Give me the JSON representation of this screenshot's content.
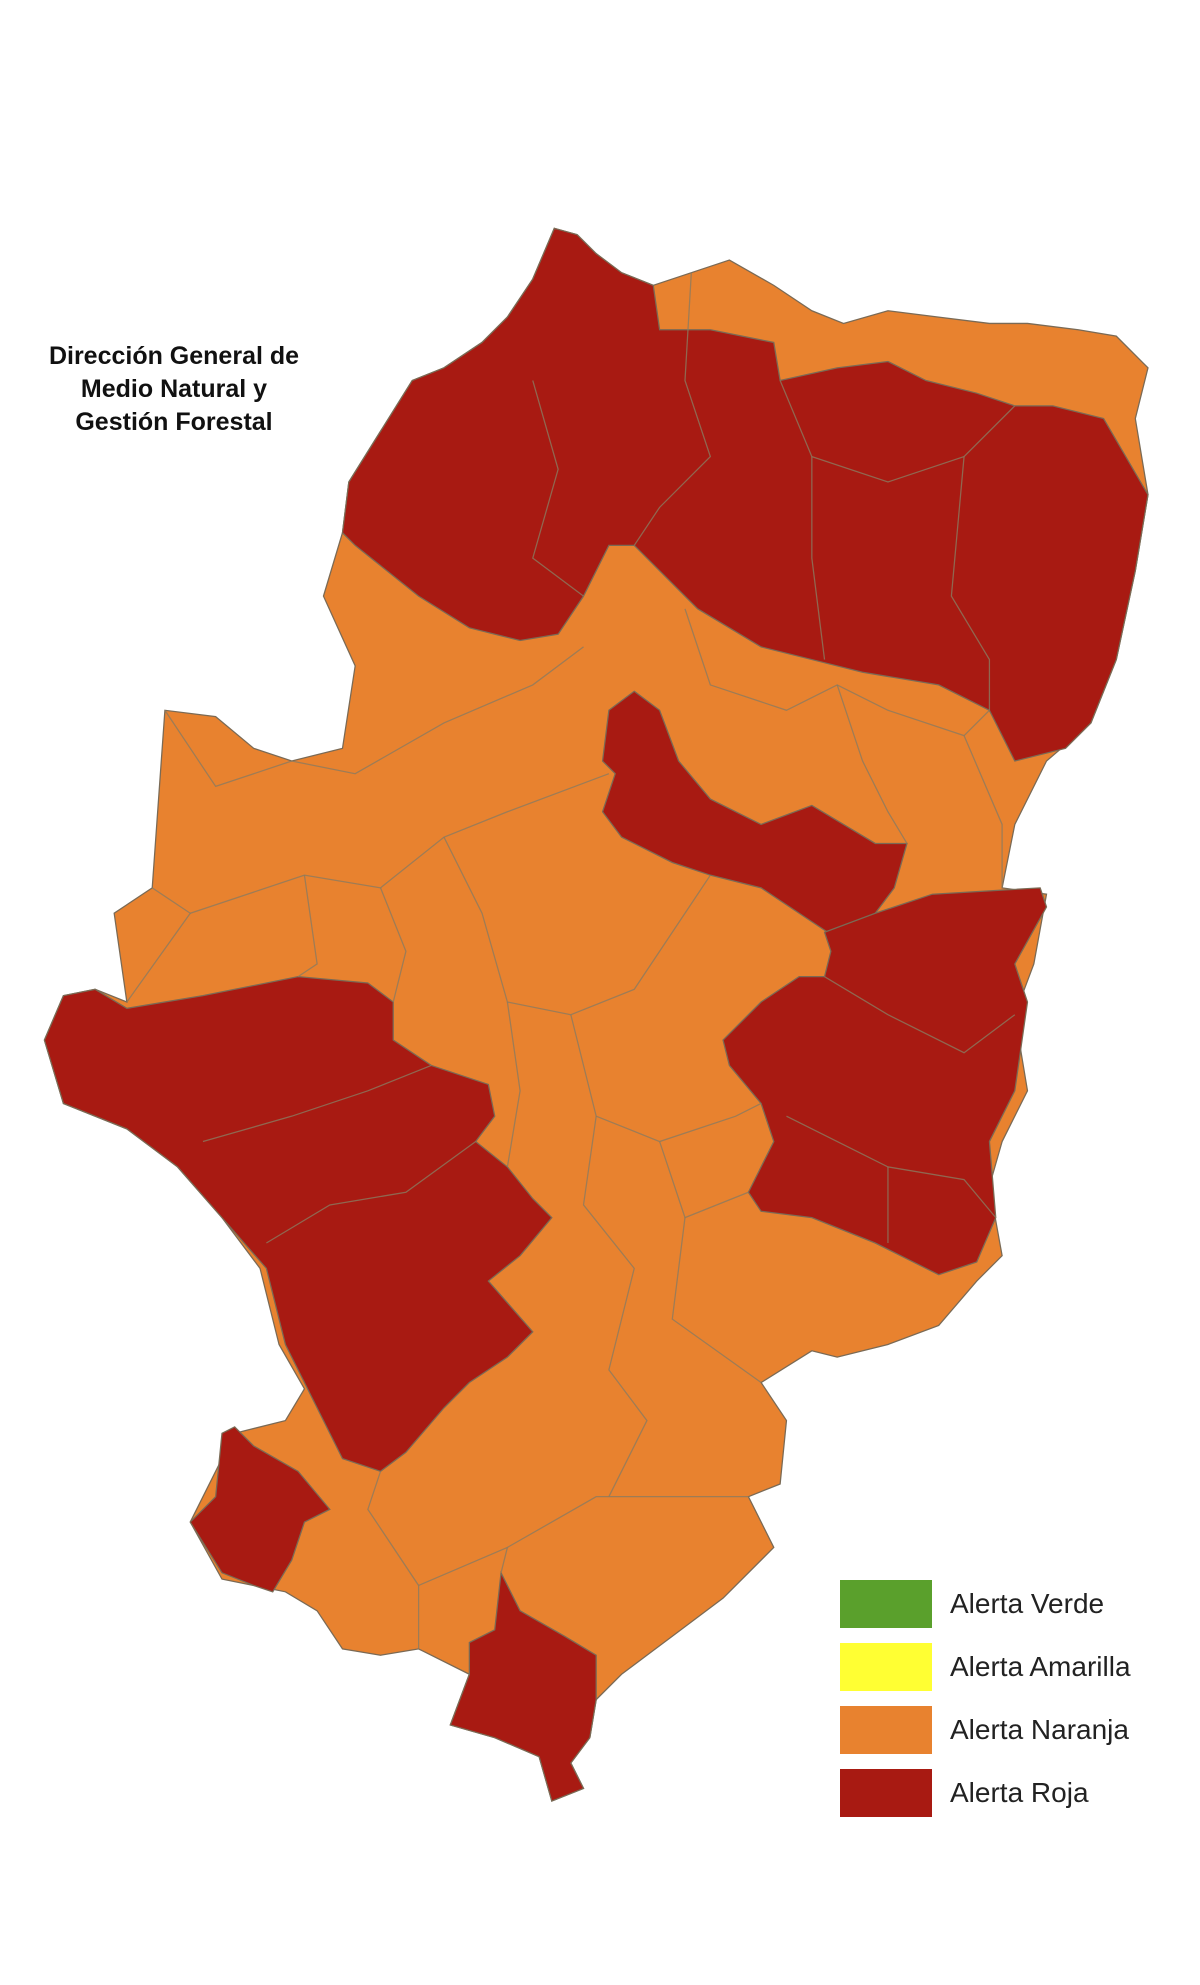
{
  "title": {
    "line1": "Dirección General de",
    "line2": "Medio Natural y",
    "line3": "Gestión Forestal"
  },
  "legend": {
    "items": [
      {
        "label": "Alerta Verde",
        "color": "#5AA02C"
      },
      {
        "label": "Alerta Amarilla",
        "color": "#FFFF33"
      },
      {
        "label": "Alerta Naranja",
        "color": "#E8822F"
      },
      {
        "label": "Alerta Roja",
        "color": "#A81A12"
      }
    ]
  },
  "map": {
    "regions": [
      {
        "zone": "north-pyrenees",
        "alert": "Alerta Roja"
      },
      {
        "zone": "central-diagonal",
        "alert": "Alerta Roja"
      },
      {
        "zone": "east",
        "alert": "Alerta Roja"
      },
      {
        "zone": "west",
        "alert": "Alerta Roja"
      },
      {
        "zone": "southwest",
        "alert": "Alerta Roja"
      },
      {
        "zone": "south",
        "alert": "Alerta Roja"
      },
      {
        "zone": "rest",
        "alert": "Alerta Naranja"
      }
    ]
  }
}
